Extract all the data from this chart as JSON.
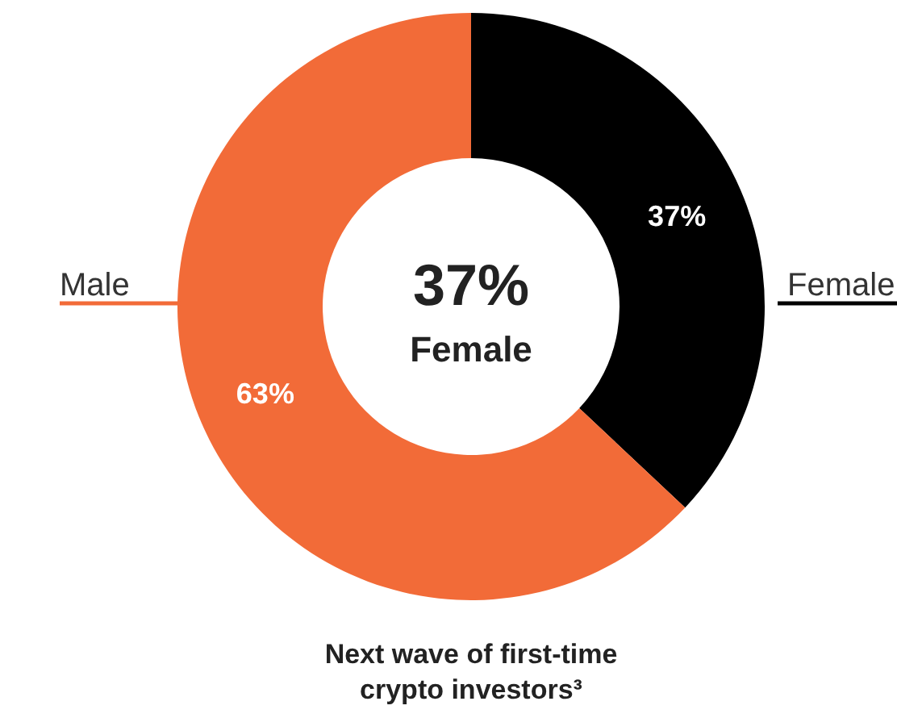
{
  "chart_data": {
    "type": "donut",
    "title": "Next wave of first-time\ncrypto investors³",
    "categories": [
      "Female",
      "Male"
    ],
    "values": [
      37,
      63
    ],
    "colors": [
      "#000000",
      "#f26b38"
    ],
    "value_labels": [
      "37%",
      "63%"
    ],
    "annotations": [
      "37%",
      "Female"
    ]
  }
}
